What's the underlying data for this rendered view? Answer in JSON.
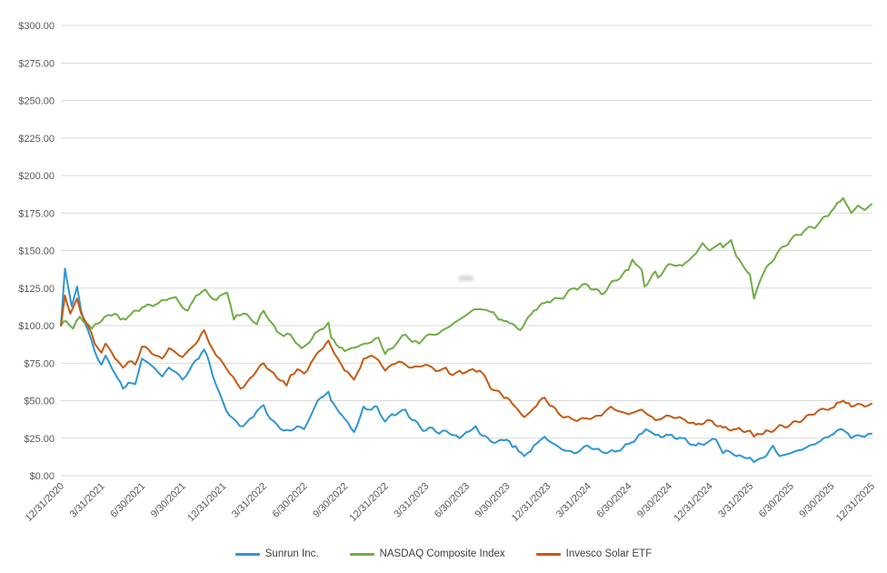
{
  "chart_data": {
    "type": "line",
    "title": "",
    "xlabel": "",
    "ylabel": "",
    "grid": "horizontal",
    "legend_position": "bottom-center",
    "ylim": [
      0,
      300
    ],
    "y_tick_step": 25,
    "y_tick_labels": [
      "$0.00",
      "$25.00",
      "$50.00",
      "$75.00",
      "$100.00",
      "$125.00",
      "$150.00",
      "$175.00",
      "$200.00",
      "$225.00",
      "$250.00",
      "$275.00",
      "$300.00"
    ],
    "x_total_months": 60,
    "months_per_tick": 3,
    "x_labels": [
      "12/31/2020",
      "3/31/2021",
      "6/30/2021",
      "9/30/2021",
      "12/31/2021",
      "3/31/2022",
      "6/30/2022",
      "9/30/2022",
      "12/31/2022",
      "3/31/2023",
      "6/30/2023",
      "9/30/2023",
      "12/31/2023",
      "3/31/2024",
      "6/30/2024",
      "9/30/2024",
      "12/31/2024",
      "3/31/2025",
      "6/30/2025",
      "9/30/2025",
      "12/31/2025"
    ],
    "series": [
      {
        "name": "Sunrun Inc.",
        "color": "#2E96D2",
        "points": [
          [
            0,
            100
          ],
          [
            0.3,
            138
          ],
          [
            0.8,
            113
          ],
          [
            1.2,
            126
          ],
          [
            1.5,
            110
          ],
          [
            2,
            97
          ],
          [
            2.5,
            83
          ],
          [
            3,
            74
          ],
          [
            3.3,
            80
          ],
          [
            4,
            68
          ],
          [
            4.6,
            58
          ],
          [
            5,
            62
          ],
          [
            5.5,
            61
          ],
          [
            6,
            78
          ],
          [
            6.5,
            75
          ],
          [
            7,
            71
          ],
          [
            7.5,
            66
          ],
          [
            8,
            72
          ],
          [
            8.5,
            69
          ],
          [
            9,
            64
          ],
          [
            9.5,
            70
          ],
          [
            10,
            77
          ],
          [
            10.6,
            84
          ],
          [
            11,
            75
          ],
          [
            11.5,
            60
          ],
          [
            12,
            49
          ],
          [
            12.5,
            40
          ],
          [
            13,
            36
          ],
          [
            13.5,
            33
          ],
          [
            14,
            38
          ],
          [
            14.5,
            43
          ],
          [
            15,
            47
          ],
          [
            15.5,
            38
          ],
          [
            16,
            34
          ],
          [
            16.5,
            30
          ],
          [
            17,
            30
          ],
          [
            17.5,
            33
          ],
          [
            18,
            31
          ],
          [
            18.5,
            40
          ],
          [
            19,
            50
          ],
          [
            19.8,
            56
          ],
          [
            20,
            50
          ],
          [
            21,
            38
          ],
          [
            21.7,
            29
          ],
          [
            22.4,
            46
          ],
          [
            23,
            44
          ],
          [
            23.4,
            46
          ],
          [
            24,
            36
          ],
          [
            24.5,
            41
          ],
          [
            25,
            42
          ],
          [
            25.5,
            44
          ],
          [
            26,
            37
          ],
          [
            27,
            30
          ],
          [
            27.5,
            32
          ],
          [
            28,
            28
          ],
          [
            28.5,
            30
          ],
          [
            29,
            27
          ],
          [
            29.5,
            25
          ],
          [
            30,
            29
          ],
          [
            30.7,
            33
          ],
          [
            31,
            28
          ],
          [
            32,
            22
          ],
          [
            33,
            24
          ],
          [
            34.3,
            13
          ],
          [
            35,
            20
          ],
          [
            35.8,
            26
          ],
          [
            36,
            24
          ],
          [
            37,
            18
          ],
          [
            38,
            15
          ],
          [
            39,
            20
          ],
          [
            40,
            16
          ],
          [
            41,
            16
          ],
          [
            42,
            21
          ],
          [
            43,
            28
          ],
          [
            43.3,
            31
          ],
          [
            44,
            27
          ],
          [
            45,
            27
          ],
          [
            46,
            25
          ],
          [
            47,
            20
          ],
          [
            48,
            23
          ],
          [
            48.5,
            24
          ],
          [
            49,
            15
          ],
          [
            49.5,
            16
          ],
          [
            50,
            13
          ],
          [
            51,
            12
          ],
          [
            51.3,
            9
          ],
          [
            52,
            12
          ],
          [
            52.7,
            20
          ],
          [
            53.2,
            13
          ],
          [
            54,
            15
          ],
          [
            55,
            18
          ],
          [
            56,
            22
          ],
          [
            57,
            27
          ],
          [
            57.8,
            31
          ],
          [
            58.5,
            25
          ],
          [
            59,
            27
          ],
          [
            59.5,
            26
          ],
          [
            60,
            28
          ]
        ]
      },
      {
        "name": "NASDAQ Composite Index",
        "color": "#70AD47",
        "points": [
          [
            0,
            100
          ],
          [
            0.4,
            103
          ],
          [
            0.9,
            98
          ],
          [
            1.4,
            106
          ],
          [
            2,
            101
          ],
          [
            2.3,
            98
          ],
          [
            3,
            103
          ],
          [
            3.5,
            107
          ],
          [
            4,
            108
          ],
          [
            4.4,
            104
          ],
          [
            5,
            106
          ],
          [
            6,
            112
          ],
          [
            7,
            114
          ],
          [
            8,
            118
          ],
          [
            8.5,
            119
          ],
          [
            9,
            112
          ],
          [
            9.4,
            110
          ],
          [
            10,
            120
          ],
          [
            10.7,
            124
          ],
          [
            11,
            120
          ],
          [
            11.5,
            117
          ],
          [
            12,
            121
          ],
          [
            12.3,
            122
          ],
          [
            12.8,
            104
          ],
          [
            13,
            107
          ],
          [
            13.5,
            108
          ],
          [
            14,
            105
          ],
          [
            14.5,
            101
          ],
          [
            15,
            110
          ],
          [
            16,
            96
          ],
          [
            16.5,
            93
          ],
          [
            17,
            94
          ],
          [
            17.8,
            85
          ],
          [
            18,
            86
          ],
          [
            19,
            96
          ],
          [
            19.8,
            102
          ],
          [
            20,
            92
          ],
          [
            21,
            83
          ],
          [
            21.5,
            85
          ],
          [
            22,
            86
          ],
          [
            22.5,
            88
          ],
          [
            23,
            89
          ],
          [
            23.5,
            92
          ],
          [
            24,
            81
          ],
          [
            25,
            90
          ],
          [
            25.5,
            94
          ],
          [
            26,
            89
          ],
          [
            26.5,
            88
          ],
          [
            27,
            93
          ],
          [
            28,
            95
          ],
          [
            29,
            101
          ],
          [
            30,
            107
          ],
          [
            30.6,
            111
          ],
          [
            31,
            111
          ],
          [
            32,
            109
          ],
          [
            32.4,
            104
          ],
          [
            33,
            103
          ],
          [
            34,
            97
          ],
          [
            35,
            110
          ],
          [
            36,
            116
          ],
          [
            37,
            118
          ],
          [
            38,
            125
          ],
          [
            39,
            127
          ],
          [
            40,
            121
          ],
          [
            41,
            130
          ],
          [
            42,
            137
          ],
          [
            42.3,
            144
          ],
          [
            43,
            137
          ],
          [
            43.2,
            126
          ],
          [
            44,
            136
          ],
          [
            44.2,
            132
          ],
          [
            45,
            141
          ],
          [
            46,
            140
          ],
          [
            47,
            148
          ],
          [
            47.5,
            155
          ],
          [
            48,
            150
          ],
          [
            48.8,
            155
          ],
          [
            49,
            152
          ],
          [
            49.6,
            157
          ],
          [
            50,
            146
          ],
          [
            51,
            134
          ],
          [
            51.3,
            118
          ],
          [
            52,
            135
          ],
          [
            53,
            148
          ],
          [
            54,
            157
          ],
          [
            55,
            163
          ],
          [
            56,
            167
          ],
          [
            57,
            176
          ],
          [
            57.9,
            185
          ],
          [
            58.5,
            175
          ],
          [
            59,
            180
          ],
          [
            59.5,
            177
          ],
          [
            60,
            181
          ]
        ]
      },
      {
        "name": "Invesco Solar ETF",
        "color": "#C55A11",
        "points": [
          [
            0,
            100
          ],
          [
            0.3,
            120
          ],
          [
            0.7,
            108
          ],
          [
            1.2,
            118
          ],
          [
            1.5,
            108
          ],
          [
            2,
            100
          ],
          [
            2.5,
            88
          ],
          [
            3,
            82
          ],
          [
            3.3,
            88
          ],
          [
            4,
            78
          ],
          [
            4.6,
            72
          ],
          [
            5,
            76
          ],
          [
            5.5,
            74
          ],
          [
            6,
            86
          ],
          [
            6.5,
            84
          ],
          [
            7,
            80
          ],
          [
            7.5,
            78
          ],
          [
            8,
            85
          ],
          [
            8.5,
            82
          ],
          [
            9,
            79
          ],
          [
            9.5,
            84
          ],
          [
            10,
            88
          ],
          [
            10.6,
            97
          ],
          [
            11,
            88
          ],
          [
            11.5,
            80
          ],
          [
            12,
            75
          ],
          [
            12.5,
            68
          ],
          [
            13,
            62
          ],
          [
            13.3,
            58
          ],
          [
            14,
            65
          ],
          [
            14.5,
            70
          ],
          [
            15,
            75
          ],
          [
            15.5,
            70
          ],
          [
            16,
            65
          ],
          [
            16.7,
            60
          ],
          [
            17,
            67
          ],
          [
            17.5,
            71
          ],
          [
            18,
            68
          ],
          [
            18.5,
            75
          ],
          [
            19,
            82
          ],
          [
            19.8,
            90
          ],
          [
            20,
            86
          ],
          [
            20.5,
            78
          ],
          [
            21,
            70
          ],
          [
            21.7,
            64
          ],
          [
            22.4,
            78
          ],
          [
            23,
            80
          ],
          [
            23.5,
            77
          ],
          [
            24,
            70
          ],
          [
            24.5,
            74
          ],
          [
            25,
            76
          ],
          [
            25.5,
            74
          ],
          [
            26,
            72
          ],
          [
            27,
            74
          ],
          [
            27.5,
            72
          ],
          [
            28,
            70
          ],
          [
            28.5,
            72
          ],
          [
            29,
            67
          ],
          [
            29.5,
            70
          ],
          [
            30,
            69
          ],
          [
            30.5,
            71
          ],
          [
            31,
            70
          ],
          [
            32,
            57
          ],
          [
            33,
            52
          ],
          [
            34.3,
            39
          ],
          [
            35,
            45
          ],
          [
            35.8,
            52
          ],
          [
            36,
            49
          ],
          [
            37,
            40
          ],
          [
            38,
            37
          ],
          [
            39,
            38
          ],
          [
            40,
            40
          ],
          [
            40.7,
            46
          ],
          [
            41,
            44
          ],
          [
            42,
            41
          ],
          [
            43,
            44
          ],
          [
            44,
            37
          ],
          [
            45,
            40
          ],
          [
            46,
            38
          ],
          [
            47,
            34
          ],
          [
            48,
            37
          ],
          [
            49,
            32
          ],
          [
            50,
            31
          ],
          [
            51,
            30
          ],
          [
            51.3,
            26
          ],
          [
            52,
            28
          ],
          [
            53,
            32
          ],
          [
            54,
            34
          ],
          [
            55,
            38
          ],
          [
            56,
            43
          ],
          [
            57,
            45
          ],
          [
            57.9,
            50
          ],
          [
            58.5,
            46
          ],
          [
            59,
            48
          ],
          [
            59.5,
            46
          ],
          [
            60,
            48
          ]
        ]
      }
    ],
    "colors": {
      "gridline": "#D9D9D9",
      "axis_label": "#595959",
      "legend_text": "#404040",
      "background": "#FFFFFF"
    }
  }
}
